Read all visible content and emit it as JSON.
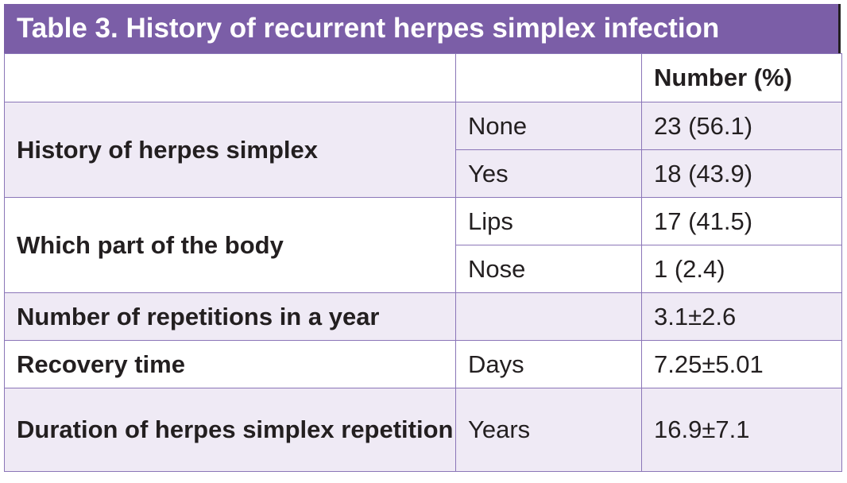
{
  "title": "Table 3. History of recurrent herpes simplex infection",
  "header": {
    "col1": "",
    "col2": "",
    "col3": "Number (%)"
  },
  "rows": [
    {
      "label": "History of herpes simplex",
      "items": [
        {
          "sub": "None",
          "value": "23 (56.1)"
        },
        {
          "sub": "Yes",
          "value": "18 (43.9)"
        }
      ]
    },
    {
      "label": "Which part of the body",
      "items": [
        {
          "sub": "Lips",
          "value": "17 (41.5)"
        },
        {
          "sub": "Nose",
          "value": "1 (2.4)"
        }
      ]
    },
    {
      "label": "Number of repetitions in a year",
      "sub": "",
      "value": "3.1±2.6"
    },
    {
      "label": "Recovery time",
      "sub": "Days",
      "value": "7.25±5.01"
    },
    {
      "label": "Duration of herpes simplex repetition",
      "sub": "Years",
      "value": "16.9±7.1"
    }
  ],
  "colors": {
    "title_bg": "#7b5ea7",
    "border": "#8b76b8",
    "shade_bg": "#efeaf5"
  }
}
